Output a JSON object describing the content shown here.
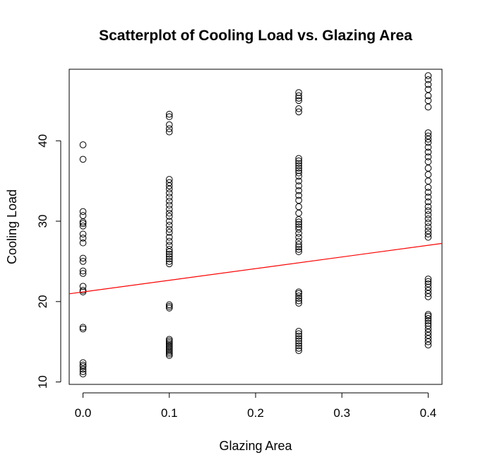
{
  "chart_data": {
    "type": "scatter",
    "title": "Scatterplot of Cooling Load vs. Glazing Area",
    "xlabel": "Glazing Area",
    "ylabel": "Cooling Load",
    "xlim": [
      -0.016,
      0.416
    ],
    "ylim": [
      9.7,
      48.9
    ],
    "xticks": [
      0.0,
      0.1,
      0.2,
      0.3,
      0.4
    ],
    "xtick_labels": [
      "0.0",
      "0.1",
      "0.2",
      "0.3",
      "0.4"
    ],
    "yticks": [
      10,
      20,
      30,
      40
    ],
    "ytick_labels": [
      "10",
      "20",
      "30",
      "40"
    ],
    "grid": false,
    "legend": "none",
    "point_color": "#000000",
    "fit_line_color": "#ff0000",
    "series": [
      {
        "x": 0.0,
        "y": [
          11.0,
          11.3,
          11.6,
          11.9,
          12.1,
          12.4,
          16.6,
          16.8,
          21.2,
          21.4,
          21.9,
          23.5,
          23.8,
          25.0,
          25.4,
          27.3,
          27.9,
          28.4,
          29.4,
          29.7,
          29.9,
          30.7,
          31.2,
          37.7,
          39.5
        ]
      },
      {
        "x": 0.1,
        "y": [
          13.3,
          13.5,
          13.7,
          13.9,
          14.1,
          14.3,
          14.5,
          14.7,
          14.9,
          15.1,
          15.3,
          19.2,
          19.4,
          19.6,
          24.7,
          25.0,
          25.3,
          25.6,
          25.9,
          26.2,
          26.5,
          27.0,
          27.5,
          28.0,
          28.6,
          29.0,
          29.5,
          30.0,
          30.6,
          31.0,
          31.5,
          32.0,
          32.5,
          33.0,
          33.5,
          34.0,
          34.4,
          34.8,
          35.2,
          41.1,
          41.5,
          42.0,
          43.0,
          43.3
        ]
      },
      {
        "x": 0.25,
        "y": [
          13.9,
          14.2,
          14.5,
          14.8,
          15.1,
          15.4,
          15.7,
          16.0,
          16.3,
          19.8,
          20.1,
          20.4,
          20.7,
          21.0,
          21.2,
          26.2,
          26.5,
          26.8,
          27.1,
          27.5,
          28.0,
          28.5,
          29.0,
          29.3,
          29.6,
          29.9,
          30.2,
          31.0,
          31.8,
          32.6,
          33.2,
          33.8,
          34.4,
          35.0,
          35.6,
          36.0,
          36.3,
          36.6,
          36.9,
          37.2,
          37.5,
          37.8,
          43.6,
          44.0,
          45.0,
          45.3,
          45.6,
          46.0
        ]
      },
      {
        "x": 0.4,
        "y": [
          14.6,
          15.0,
          15.4,
          15.8,
          16.2,
          16.6,
          17.0,
          17.3,
          17.6,
          17.9,
          18.2,
          18.4,
          20.6,
          21.0,
          21.4,
          21.8,
          22.2,
          22.5,
          22.8,
          28.0,
          28.4,
          28.8,
          29.3,
          29.8,
          30.3,
          30.8,
          31.3,
          31.8,
          32.4,
          33.0,
          33.6,
          34.2,
          35.0,
          35.8,
          36.6,
          37.4,
          38.0,
          38.6,
          39.2,
          39.8,
          40.2,
          40.6,
          41.0,
          44.2,
          45.0,
          45.6,
          46.4,
          47.0,
          47.6,
          48.1
        ]
      }
    ],
    "fit_line": {
      "intercept": 21.2,
      "slope": 14.5
    }
  }
}
